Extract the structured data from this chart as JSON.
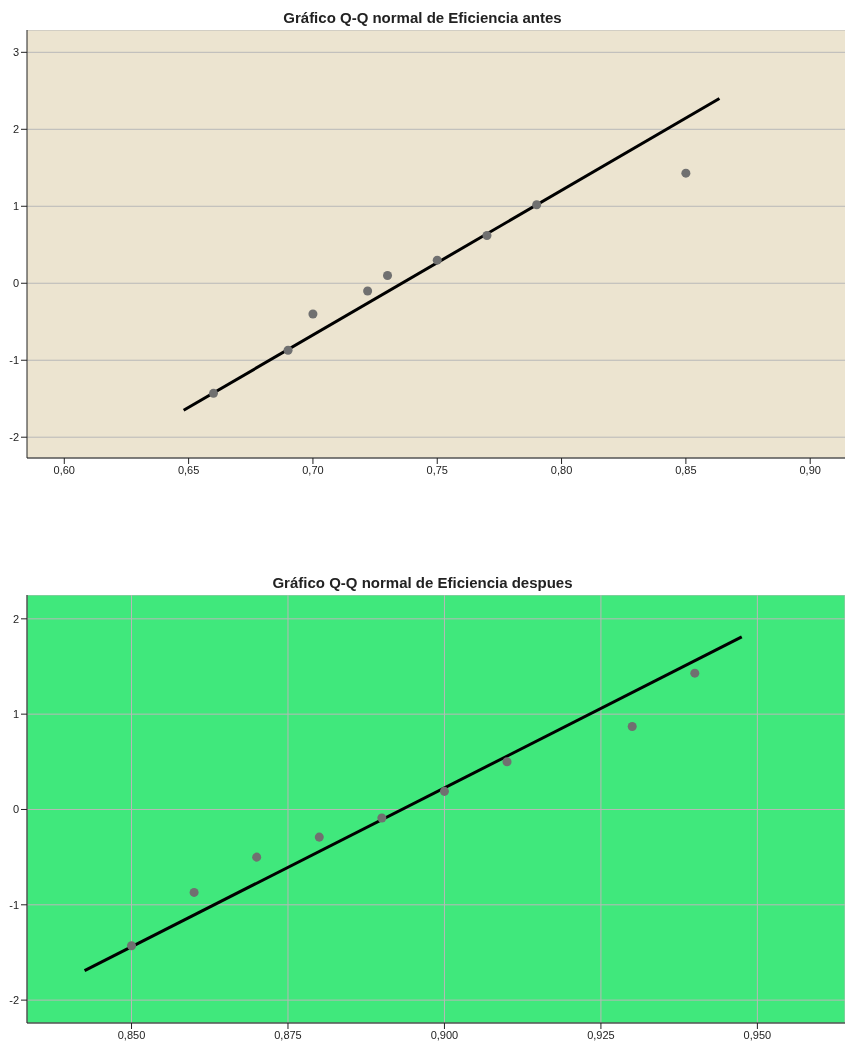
{
  "chart_data": [
    {
      "type": "scatter",
      "title": "Gráfico Q-Q normal de Eficiencia antes",
      "marker": "circle",
      "grid": "y",
      "xlim": [
        0.585,
        0.914
      ],
      "ylim": [
        -2.27,
        3.29
      ],
      "xticks": [
        {
          "value": 0.6,
          "label": "0,60"
        },
        {
          "value": 0.65,
          "label": "0,65"
        },
        {
          "value": 0.7,
          "label": "0,70"
        },
        {
          "value": 0.75,
          "label": "0,75"
        },
        {
          "value": 0.8,
          "label": "0,80"
        },
        {
          "value": 0.85,
          "label": "0,85"
        },
        {
          "value": 0.9,
          "label": "0,90"
        }
      ],
      "yticks": [
        -2,
        -1,
        0,
        1,
        2,
        3
      ],
      "series": [
        {
          "color": "#707070",
          "x": [
            0.66,
            0.69,
            0.7,
            0.722,
            0.73,
            0.75,
            0.77,
            0.79,
            0.85
          ],
          "values": [
            -1.43,
            -0.87,
            -0.4,
            -0.1,
            0.1,
            0.3,
            0.62,
            1.02,
            1.43
          ]
        },
        {
          "type": "line",
          "marker": "none",
          "color": "#000000",
          "x": [
            0.648,
            0.8635
          ],
          "values": [
            -1.65,
            2.4
          ]
        }
      ]
    },
    {
      "type": "scatter",
      "title": "Gráfico Q-Q normal de Eficiencia despues",
      "marker": "circle",
      "grid": true,
      "xlim": [
        0.8333,
        0.964
      ],
      "ylim": [
        -2.24,
        2.25
      ],
      "xticks": [
        {
          "value": 0.85,
          "label": "0,850"
        },
        {
          "value": 0.875,
          "label": "0,875"
        },
        {
          "value": 0.9,
          "label": "0,900"
        },
        {
          "value": 0.925,
          "label": "0,925"
        },
        {
          "value": 0.95,
          "label": "0,950"
        }
      ],
      "yticks": [
        -2,
        -1,
        0,
        1,
        2
      ],
      "series": [
        {
          "color": "#707070",
          "x": [
            0.85,
            0.86,
            0.87,
            0.88,
            0.89,
            0.9,
            0.91,
            0.93,
            0.94
          ],
          "values": [
            -1.43,
            -0.87,
            -0.5,
            -0.29,
            -0.09,
            0.19,
            0.5,
            0.87,
            1.43
          ]
        },
        {
          "type": "line",
          "marker": "none",
          "color": "#000000",
          "x": [
            0.8425,
            0.9475
          ],
          "values": [
            -1.69,
            1.81
          ]
        }
      ]
    }
  ]
}
